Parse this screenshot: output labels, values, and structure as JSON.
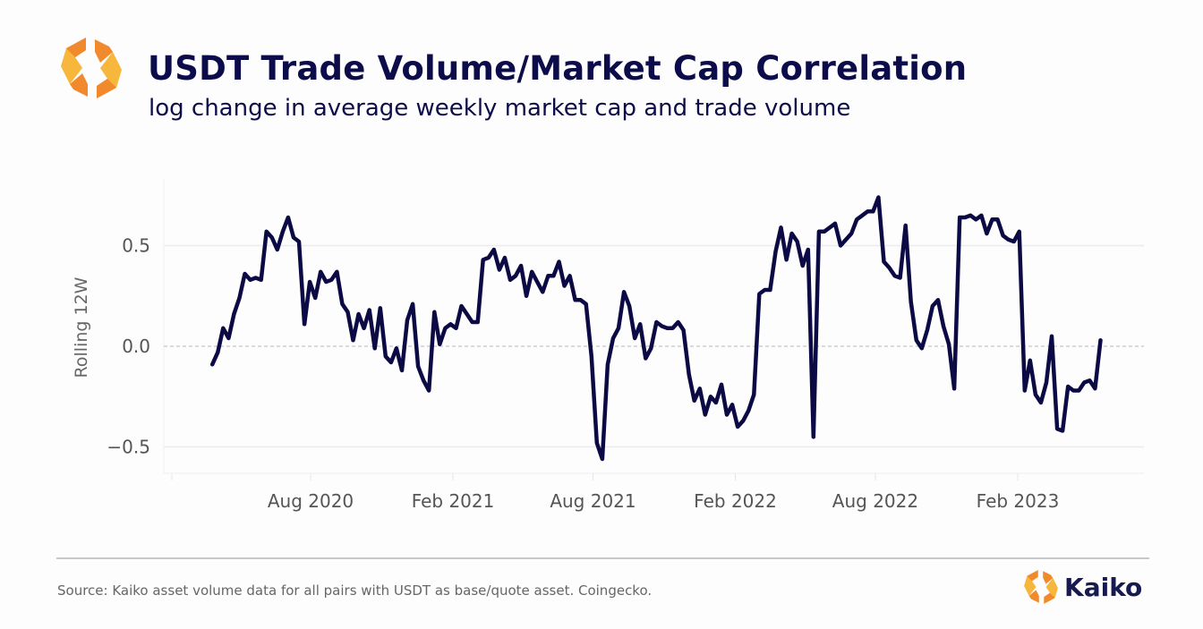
{
  "header": {
    "title": "USDT Trade Volume/Market Cap Correlation",
    "subtitle": "log change in average weekly market cap and trade volume"
  },
  "footer": {
    "source": "Source: Kaiko asset volume data for all pairs with USDT as base/quote asset. Coingecko.",
    "brand": "Kaiko"
  },
  "colors": {
    "line": "#0b0a45",
    "logo_orange": "#f08a2c",
    "logo_yellow": "#f6b73c",
    "title": "#0d0c4a"
  },
  "chart_data": {
    "type": "line",
    "title": "USDT Trade Volume/Market Cap Correlation",
    "subtitle": "log change in average weekly market cap and trade volume",
    "xlabel": "",
    "ylabel": "Rolling 12W",
    "xlim": [
      "2020-02-10",
      "2023-09-20"
    ],
    "ylim": [
      -0.63,
      0.8
    ],
    "yticks": [
      {
        "value": 0.5,
        "label": "0.5"
      },
      {
        "value": 0.0,
        "label": "0.0"
      },
      {
        "value": -0.5,
        "label": "−0.5"
      }
    ],
    "xticks": [
      {
        "date": "2020-08-01",
        "label": "Aug 2020"
      },
      {
        "date": "2021-02-01",
        "label": "Feb 2021"
      },
      {
        "date": "2021-08-01",
        "label": "Aug 2021"
      },
      {
        "date": "2022-02-01",
        "label": "Feb 2022"
      },
      {
        "date": "2022-08-01",
        "label": "Aug 2022"
      },
      {
        "date": "2023-02-01",
        "label": "Feb 2023"
      }
    ],
    "grid": true,
    "zero_line": "dashed",
    "series": [
      {
        "name": "Rolling 12W",
        "start_date": "2020-03-27",
        "interval_days": 7,
        "values": [
          -0.09,
          -0.03,
          0.09,
          0.04,
          0.16,
          0.24,
          0.36,
          0.33,
          0.34,
          0.33,
          0.57,
          0.54,
          0.48,
          0.57,
          0.64,
          0.54,
          0.52,
          0.11,
          0.32,
          0.24,
          0.37,
          0.32,
          0.33,
          0.37,
          0.21,
          0.17,
          0.03,
          0.16,
          0.09,
          0.18,
          -0.01,
          0.19,
          -0.05,
          -0.08,
          -0.01,
          -0.12,
          0.13,
          0.21,
          -0.1,
          -0.17,
          -0.22,
          0.17,
          0.01,
          0.09,
          0.11,
          0.09,
          0.2,
          0.16,
          0.12,
          0.12,
          0.43,
          0.44,
          0.48,
          0.38,
          0.44,
          0.33,
          0.35,
          0.4,
          0.25,
          0.37,
          0.32,
          0.27,
          0.35,
          0.35,
          0.42,
          0.3,
          0.35,
          0.23,
          0.23,
          0.21,
          -0.05,
          -0.48,
          -0.56,
          -0.09,
          0.04,
          0.09,
          0.27,
          0.2,
          0.04,
          0.11,
          -0.06,
          -0.01,
          0.12,
          0.1,
          0.09,
          0.09,
          0.12,
          0.08,
          -0.14,
          -0.27,
          -0.21,
          -0.34,
          -0.25,
          -0.28,
          -0.19,
          -0.34,
          -0.29,
          -0.4,
          -0.37,
          -0.32,
          -0.24,
          0.26,
          0.28,
          0.28,
          0.47,
          0.59,
          0.43,
          0.56,
          0.52,
          0.4,
          0.48,
          -0.45,
          0.57,
          0.57,
          0.59,
          0.61,
          0.5,
          0.53,
          0.56,
          0.63,
          0.65,
          0.67,
          0.67,
          0.74,
          0.42,
          0.39,
          0.35,
          0.34,
          0.6,
          0.22,
          0.03,
          -0.01,
          0.08,
          0.2,
          0.23,
          0.1,
          0.01,
          -0.21,
          0.64,
          0.64,
          0.65,
          0.63,
          0.65,
          0.56,
          0.63,
          0.63,
          0.55,
          0.53,
          0.52,
          0.57,
          -0.22,
          -0.07,
          -0.24,
          -0.28,
          -0.18,
          0.05,
          -0.41,
          -0.42,
          -0.2,
          -0.22,
          -0.22,
          -0.18,
          -0.17,
          -0.21,
          0.03
        ]
      }
    ]
  }
}
